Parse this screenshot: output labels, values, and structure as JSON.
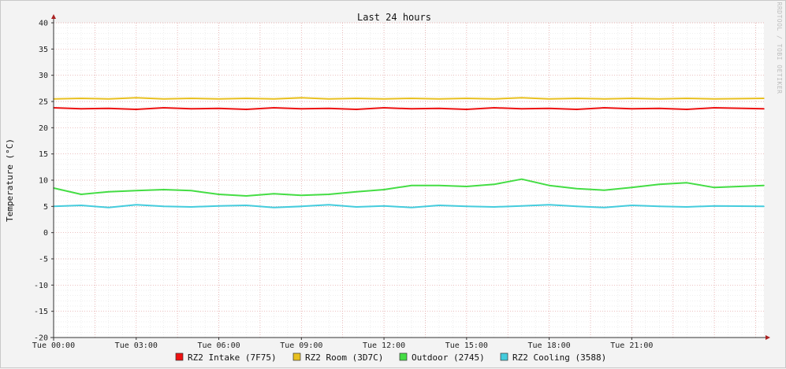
{
  "chart_data": {
    "type": "line",
    "title": "Last 24 hours",
    "ylabel": "Temperature (°C)",
    "xlabel": "",
    "watermark": "RRDTOOL / TOBI OETIKER",
    "ylim": [
      -20,
      40
    ],
    "yticks": [
      40,
      35,
      30,
      25,
      20,
      15,
      10,
      5,
      0,
      -5,
      -10,
      -15,
      -20
    ],
    "x_range_hours": [
      0,
      25.8
    ],
    "xticks": [
      {
        "hour": 0,
        "label": "Tue 00:00"
      },
      {
        "hour": 3,
        "label": "Tue 03:00"
      },
      {
        "hour": 6,
        "label": "Tue 06:00"
      },
      {
        "hour": 9,
        "label": "Tue 09:00"
      },
      {
        "hour": 12,
        "label": "Tue 12:00"
      },
      {
        "hour": 15,
        "label": "Tue 15:00"
      },
      {
        "hour": 18,
        "label": "Tue 18:00"
      },
      {
        "hour": 21,
        "label": "Tue 21:00"
      }
    ],
    "grid": true,
    "legend_position": "bottom",
    "series": [
      {
        "name": "RZ2 Intake (7F75)",
        "color": "#ee1111",
        "x": [
          0,
          1,
          2,
          3,
          4,
          5,
          6,
          7,
          8,
          9,
          10,
          11,
          12,
          13,
          14,
          15,
          16,
          17,
          18,
          19,
          20,
          21,
          22,
          23,
          24,
          25.8
        ],
        "values": [
          23.8,
          23.6,
          23.7,
          23.5,
          23.8,
          23.6,
          23.7,
          23.5,
          23.8,
          23.6,
          23.7,
          23.5,
          23.8,
          23.6,
          23.7,
          23.5,
          23.8,
          23.6,
          23.7,
          23.5,
          23.8,
          23.6,
          23.7,
          23.5,
          23.8,
          23.6
        ]
      },
      {
        "name": "RZ2 Room (3D7C)",
        "color": "#e8c020",
        "x": [
          0,
          1,
          2,
          3,
          4,
          5,
          6,
          7,
          8,
          9,
          10,
          11,
          12,
          13,
          14,
          15,
          16,
          17,
          18,
          19,
          20,
          21,
          22,
          23,
          24,
          25.8
        ],
        "values": [
          25.5,
          25.6,
          25.5,
          25.7,
          25.5,
          25.6,
          25.5,
          25.6,
          25.5,
          25.7,
          25.5,
          25.6,
          25.5,
          25.6,
          25.5,
          25.6,
          25.5,
          25.7,
          25.5,
          25.6,
          25.5,
          25.6,
          25.5,
          25.6,
          25.5,
          25.6
        ]
      },
      {
        "name": "Outdoor (2745)",
        "color": "#44dd44",
        "x": [
          0,
          1,
          2,
          3,
          4,
          5,
          6,
          7,
          8,
          9,
          10,
          11,
          12,
          13,
          14,
          15,
          16,
          17,
          18,
          19,
          20,
          21,
          22,
          23,
          24,
          25.8
        ],
        "values": [
          8.5,
          7.3,
          7.8,
          8.0,
          8.2,
          8.0,
          7.3,
          7.0,
          7.4,
          7.1,
          7.3,
          7.8,
          8.2,
          9.0,
          9.0,
          8.8,
          9.2,
          10.2,
          9.0,
          8.4,
          8.1,
          8.6,
          9.2,
          9.5,
          8.6,
          9.0
        ]
      },
      {
        "name": "RZ2 Cooling (3588)",
        "color": "#44ccdd",
        "x": [
          0,
          1,
          2,
          3,
          4,
          5,
          6,
          7,
          8,
          9,
          10,
          11,
          12,
          13,
          14,
          15,
          16,
          17,
          18,
          19,
          20,
          21,
          22,
          23,
          24,
          25.8
        ],
        "values": [
          5.0,
          5.2,
          4.8,
          5.3,
          5.0,
          4.9,
          5.1,
          5.2,
          4.8,
          5.0,
          5.3,
          4.9,
          5.1,
          4.8,
          5.2,
          5.0,
          4.9,
          5.1,
          5.3,
          5.0,
          4.8,
          5.2,
          5.0,
          4.9,
          5.1,
          5.0
        ]
      }
    ]
  }
}
